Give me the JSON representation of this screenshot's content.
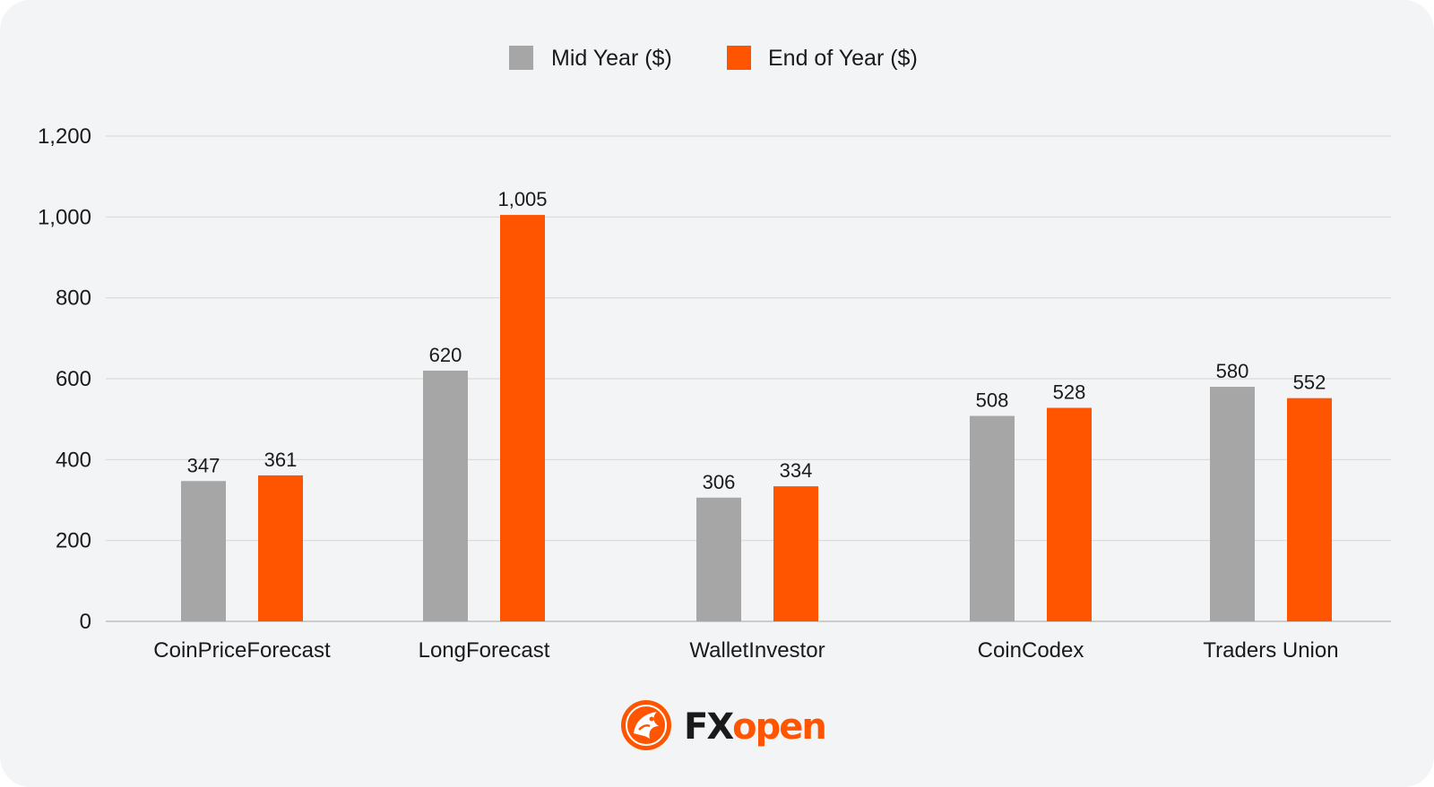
{
  "chart_data": {
    "type": "bar",
    "title": "",
    "xlabel": "",
    "ylabel": "",
    "categories": [
      "CoinPriceForecast",
      "LongForecast",
      "WalletInvestor",
      "CoinCodex",
      "Traders Union"
    ],
    "series": [
      {
        "name": "Mid Year ($)",
        "color": "#a6a6a6",
        "values": [
          347,
          620,
          306,
          508,
          580
        ],
        "labels": [
          "347",
          "620",
          "306",
          "508",
          "580"
        ]
      },
      {
        "name": "End of Year ($)",
        "color": "#ff5500",
        "values": [
          361,
          1005,
          334,
          528,
          552
        ],
        "labels": [
          "361",
          "1,005",
          "334",
          "528",
          "552"
        ]
      }
    ],
    "ylim": [
      0,
      1200
    ],
    "yticks": [
      0,
      200,
      400,
      600,
      800,
      1000,
      1200
    ],
    "ytick_labels": [
      "0",
      "200",
      "400",
      "600",
      "800",
      "1,000",
      "1,200"
    ],
    "grid": true,
    "legend_position": "top-center"
  },
  "brand": {
    "name_part1": "FX",
    "name_part2": "open",
    "color_dark": "#1a1a1a",
    "color_accent": "#ff5500"
  },
  "colors": {
    "background": "#f3f4f6",
    "gridline": "#d9d9d9",
    "axis": "#bfbfbf"
  }
}
